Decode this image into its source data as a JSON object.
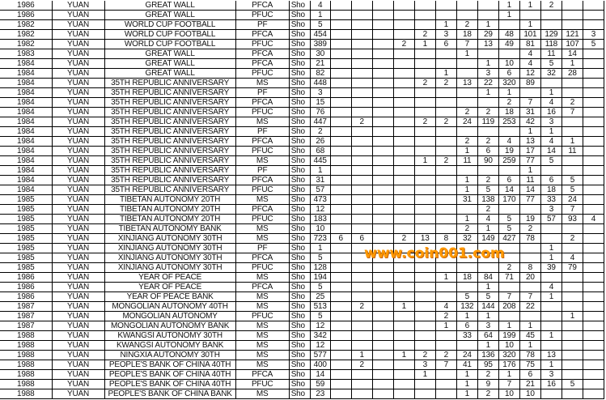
{
  "watermark": "www.coin001.com",
  "rows": [
    [
      "1986",
      "YUAN",
      "GREAT WALL",
      "PFCA",
      "Sho",
      "4",
      "",
      "",
      "",
      "",
      "",
      "",
      "",
      "",
      "1",
      "1",
      "2",
      "",
      ""
    ],
    [
      "1986",
      "YUAN",
      "GREAT WALL",
      "PFUC",
      "Sho",
      "1",
      "",
      "",
      "",
      "",
      "",
      "",
      "",
      "",
      "1",
      "",
      "",
      "",
      ""
    ],
    [
      "1982",
      "YUAN",
      "WORLD CUP FOOTBALL",
      "PF",
      "Sho",
      "5",
      "",
      "",
      "",
      "",
      "",
      "1",
      "2",
      "1",
      "",
      "1",
      "",
      "",
      ""
    ],
    [
      "1982",
      "YUAN",
      "WORLD CUP FOOTBALL",
      "PFCA",
      "Sho",
      "454",
      "",
      "",
      "",
      "",
      "2",
      "3",
      "18",
      "29",
      "48",
      "101",
      "129",
      "121",
      "3"
    ],
    [
      "1982",
      "YUAN",
      "WORLD CUP FOOTBALL",
      "PFUC",
      "Sho",
      "389",
      "",
      "",
      "",
      "2",
      "1",
      "6",
      "7",
      "13",
      "49",
      "81",
      "118",
      "107",
      "5"
    ],
    [
      "1983",
      "YUAN",
      "GREAT WALL",
      "PFCA",
      "Sho",
      "30",
      "",
      "",
      "",
      "",
      "",
      "",
      "1",
      "",
      "",
      "4",
      "11",
      "14",
      ""
    ],
    [
      "1984",
      "YUAN",
      "GREAT WALL",
      "PFCA",
      "Sho",
      "21",
      "",
      "",
      "",
      "",
      "",
      "",
      "",
      "1",
      "10",
      "4",
      "5",
      "1",
      ""
    ],
    [
      "1984",
      "YUAN",
      "GREAT WALL",
      "PFUC",
      "Sho",
      "82",
      "",
      "",
      "",
      "",
      "",
      "1",
      "",
      "3",
      "6",
      "12",
      "32",
      "28",
      ""
    ],
    [
      "1984",
      "YUAN",
      "35TH REPUBLIC ANNIVERSARY",
      "MS",
      "Sho",
      "448",
      "",
      "",
      "",
      "",
      "2",
      "2",
      "13",
      "22",
      "320",
      "89",
      "",
      "",
      ""
    ],
    [
      "1984",
      "YUAN",
      "35TH REPUBLIC ANNIVERSARY",
      "PF",
      "Sho",
      "3",
      "",
      "",
      "",
      "",
      "",
      "",
      "",
      "1",
      "1",
      "",
      "1",
      "",
      ""
    ],
    [
      "1984",
      "YUAN",
      "35TH REPUBLIC ANNIVERSARY",
      "PFCA",
      "Sho",
      "15",
      "",
      "",
      "",
      "",
      "",
      "",
      "",
      "",
      "2",
      "7",
      "4",
      "2",
      ""
    ],
    [
      "1984",
      "YUAN",
      "35TH REPUBLIC ANNIVERSARY",
      "PFUC",
      "Sho",
      "76",
      "",
      "",
      "",
      "",
      "",
      "",
      "2",
      "2",
      "18",
      "31",
      "16",
      "7",
      ""
    ],
    [
      "1984",
      "YUAN",
      "35TH REPUBLIC ANNIVERSARY",
      "MS",
      "Sho",
      "447",
      "",
      "2",
      "",
      "",
      "2",
      "2",
      "24",
      "119",
      "253",
      "42",
      "3",
      "",
      ""
    ],
    [
      "1984",
      "YUAN",
      "35TH REPUBLIC ANNIVERSARY",
      "PF",
      "Sho",
      "2",
      "",
      "",
      "",
      "",
      "",
      "",
      "",
      "",
      "",
      "1",
      "1",
      "",
      ""
    ],
    [
      "1984",
      "YUAN",
      "35TH REPUBLIC ANNIVERSARY",
      "PFCA",
      "Sho",
      "26",
      "",
      "",
      "",
      "",
      "",
      "",
      "2",
      "2",
      "4",
      "13",
      "4",
      "1",
      ""
    ],
    [
      "1984",
      "YUAN",
      "35TH REPUBLIC ANNIVERSARY",
      "PFUC",
      "Sho",
      "68",
      "",
      "",
      "",
      "",
      "",
      "",
      "1",
      "6",
      "19",
      "17",
      "14",
      "11",
      ""
    ],
    [
      "1984",
      "YUAN",
      "35TH REPUBLIC ANNIVERSARY",
      "MS",
      "Sho",
      "445",
      "",
      "",
      "",
      "",
      "1",
      "2",
      "11",
      "90",
      "259",
      "77",
      "5",
      "",
      ""
    ],
    [
      "1984",
      "YUAN",
      "35TH REPUBLIC ANNIVERSARY",
      "PF",
      "Sho",
      "1",
      "",
      "",
      "",
      "",
      "",
      "",
      "",
      "",
      "",
      "1",
      "",
      "",
      ""
    ],
    [
      "1984",
      "YUAN",
      "35TH REPUBLIC ANNIVERSARY",
      "PFCA",
      "Sho",
      "31",
      "",
      "",
      "",
      "",
      "",
      "",
      "1",
      "2",
      "6",
      "11",
      "6",
      "5",
      ""
    ],
    [
      "1984",
      "YUAN",
      "35TH REPUBLIC ANNIVERSARY",
      "PFUC",
      "Sho",
      "57",
      "",
      "",
      "",
      "",
      "",
      "",
      "1",
      "5",
      "14",
      "14",
      "18",
      "5",
      ""
    ],
    [
      "1985",
      "YUAN",
      "TIBETAN AUTONOMY 20TH",
      "MS",
      "Sho",
      "473",
      "",
      "",
      "",
      "",
      "",
      "",
      "31",
      "138",
      "170",
      "77",
      "33",
      "24",
      ""
    ],
    [
      "1985",
      "YUAN",
      "TIBETAN AUTONOMY 20TH",
      "PFCA",
      "Sho",
      "12",
      "",
      "",
      "",
      "",
      "",
      "",
      "",
      "2",
      "",
      "",
      "3",
      "7",
      ""
    ],
    [
      "1985",
      "YUAN",
      "TIBETAN AUTONOMY 20TH",
      "PFUC",
      "Sho",
      "183",
      "",
      "",
      "",
      "",
      "",
      "",
      "1",
      "4",
      "5",
      "19",
      "57",
      "93",
      "4"
    ],
    [
      "1985",
      "YUAN",
      "TIBETAN AUTONOMY BANK",
      "MS",
      "Sho",
      "10",
      "",
      "",
      "",
      "",
      "",
      "",
      "2",
      "1",
      "5",
      "2",
      "",
      "",
      ""
    ],
    [
      "1985",
      "YUAN",
      "XINJIANG AUTONOMY 30TH",
      "MS",
      "Sho",
      "723",
      "6",
      "6",
      "",
      "2",
      "13",
      "8",
      "32",
      "149",
      "427",
      "78",
      "",
      "2",
      ""
    ],
    [
      "1985",
      "YUAN",
      "XINJIANG AUTONOMY 30TH",
      "PF",
      "Sho",
      "1",
      "",
      "",
      "",
      "",
      "",
      "",
      "",
      "",
      "",
      "",
      "1",
      "",
      ""
    ],
    [
      "1985",
      "YUAN",
      "XINJIANG AUTONOMY 30TH",
      "PFCA",
      "Sho",
      "5",
      "",
      "",
      "",
      "",
      "",
      "",
      "",
      "",
      "",
      "",
      "1",
      "4",
      ""
    ],
    [
      "1985",
      "YUAN",
      "XINJIANG AUTONOMY 30TH",
      "PFUC",
      "Sho",
      "128",
      "",
      "",
      "",
      "",
      "",
      "",
      "",
      "",
      "2",
      "8",
      "39",
      "79",
      ""
    ],
    [
      "1986",
      "YUAN",
      "YEAR OF PEACE",
      "MS",
      "Sho",
      "194",
      "",
      "",
      "",
      "",
      "",
      "1",
      "18",
      "84",
      "71",
      "20",
      "",
      "",
      ""
    ],
    [
      "1986",
      "YUAN",
      "YEAR OF PEACE",
      "PFCA",
      "Sho",
      "5",
      "",
      "",
      "",
      "",
      "",
      "",
      "",
      "1",
      "",
      "",
      "4",
      "",
      ""
    ],
    [
      "1986",
      "YUAN",
      "YEAR OF PEACE BANK",
      "MS",
      "Sho",
      "25",
      "",
      "",
      "",
      "",
      "",
      "",
      "5",
      "5",
      "7",
      "7",
      "1",
      "",
      ""
    ],
    [
      "1987",
      "YUAN",
      "MONGOLIAN AUTONOMY 40TH",
      "MS",
      "Sho",
      "513",
      "",
      "2",
      "",
      "1",
      "",
      "4",
      "132",
      "144",
      "208",
      "22",
      "",
      "",
      ""
    ],
    [
      "1987",
      "YUAN",
      "MONGOLIAN AUTONOMY",
      "PFUC",
      "Sho",
      "5",
      "",
      "",
      "",
      "",
      "",
      "2",
      "1",
      "1",
      "",
      "",
      "",
      "1",
      ""
    ],
    [
      "1987",
      "YUAN",
      "MONGOLIAN AUTONOMY BANK",
      "MS",
      "Sho",
      "12",
      "",
      "",
      "",
      "",
      "",
      "1",
      "6",
      "3",
      "1",
      "1",
      "",
      "",
      ""
    ],
    [
      "1988",
      "YUAN",
      "KWANGSI AUTONOMY 30TH",
      "MS",
      "Sho",
      "342",
      "",
      "",
      "",
      "",
      "",
      "",
      "33",
      "64",
      "199",
      "45",
      "1",
      "",
      ""
    ],
    [
      "1988",
      "YUAN",
      "KWANGSI AUTONOMY BANK",
      "MS",
      "Sho",
      "12",
      "",
      "",
      "",
      "",
      "",
      "",
      "",
      "1",
      "10",
      "1",
      "",
      "",
      ""
    ],
    [
      "1988",
      "YUAN",
      "NINGXIA AUTONOMY 30TH",
      "MS",
      "Sho",
      "577",
      "",
      "1",
      "",
      "1",
      "2",
      "2",
      "24",
      "136",
      "320",
      "78",
      "13",
      "",
      ""
    ],
    [
      "1988",
      "YUAN",
      "PEOPLE'S BANK OF CHINA 40TH",
      "MS",
      "Sho",
      "400",
      "",
      "2",
      "",
      "",
      "3",
      "7",
      "41",
      "95",
      "176",
      "75",
      "1",
      "",
      ""
    ],
    [
      "1988",
      "YUAN",
      "PEOPLE'S BANK OF CHINA 40TH",
      "PFCA",
      "Sho",
      "14",
      "",
      "",
      "",
      "",
      "1",
      "",
      "1",
      "2",
      "1",
      "6",
      "3",
      "",
      ""
    ],
    [
      "1988",
      "YUAN",
      "PEOPLE'S BANK OF CHINA 40TH",
      "PFUC",
      "Sho",
      "59",
      "",
      "",
      "",
      "",
      "",
      "",
      "1",
      "9",
      "7",
      "21",
      "16",
      "5",
      ""
    ],
    [
      "1988",
      "YUAN",
      "PEOPLE'S BANK OF CHINA BANK",
      "MS",
      "Sho",
      "23",
      "",
      "",
      "",
      "",
      "",
      "",
      "1",
      "2",
      "10",
      "10",
      "",
      "",
      ""
    ]
  ]
}
